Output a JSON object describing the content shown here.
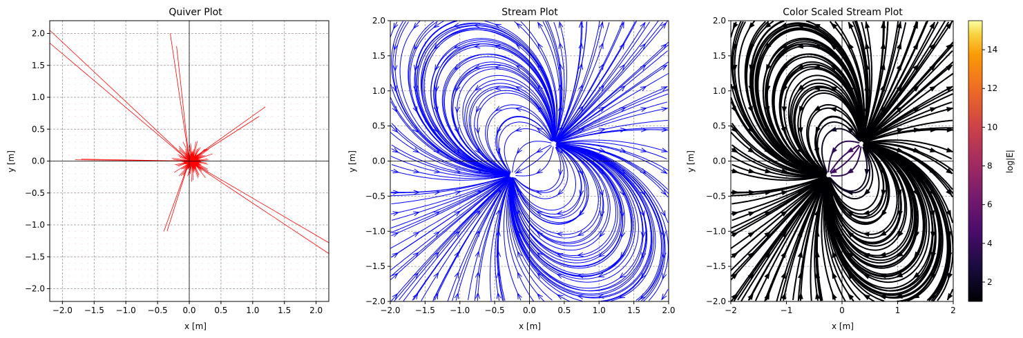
{
  "chart_data": [
    {
      "type": "quiver",
      "title": "Quiver Plot",
      "xlabel": "x [m]",
      "ylabel": "y [m]",
      "xlim": [
        -2.2,
        2.2
      ],
      "ylim": [
        -2.2,
        2.2
      ],
      "xticks": [
        "−2.0",
        "−1.5",
        "−1.0",
        "−0.5",
        "0.0",
        "0.5",
        "1.0",
        "1.5",
        "2.0"
      ],
      "yticks": [
        "−2.0",
        "−1.5",
        "−1.0",
        "−0.5",
        "0.0",
        "0.5",
        "1.0",
        "1.5",
        "2.0"
      ],
      "grid": true,
      "color": "#ff0000",
      "grid_range": [
        -2.0,
        2.0
      ],
      "long_arrows": [
        {
          "x": [
            0.0,
            -2.2
          ],
          "y": [
            0.0,
            2.05
          ]
        },
        {
          "x": [
            0.0,
            -2.2
          ],
          "y": [
            0.0,
            1.85
          ]
        },
        {
          "x": [
            0.0,
            2.2
          ],
          "y": [
            0.0,
            -1.45
          ]
        },
        {
          "x": [
            0.0,
            2.2
          ],
          "y": [
            0.0,
            -1.28
          ]
        },
        {
          "x": [
            0.0,
            1.2
          ],
          "y": [
            0.0,
            0.85
          ]
        },
        {
          "x": [
            0.0,
            1.1
          ],
          "y": [
            0.0,
            0.7
          ]
        },
        {
          "x": [
            0.0,
            -0.3
          ],
          "y": [
            0.0,
            2.0
          ]
        },
        {
          "x": [
            0.0,
            -0.2
          ],
          "y": [
            0.0,
            1.8
          ]
        },
        {
          "x": [
            0.0,
            -0.4
          ],
          "y": [
            0.0,
            -1.1
          ]
        },
        {
          "x": [
            0.0,
            -0.35
          ],
          "y": [
            0.0,
            -1.1
          ]
        },
        {
          "x": [
            0.0,
            -1.8
          ],
          "y": [
            0.0,
            0.02
          ]
        },
        {
          "x": [
            0.0,
            -1.7
          ],
          "y": [
            0.0,
            0.03
          ]
        }
      ]
    },
    {
      "type": "stream",
      "title": "Stream Plot",
      "xlabel": "x [m]",
      "ylabel": "y [m]",
      "xlim": [
        -2.0,
        2.0
      ],
      "ylim": [
        -2.0,
        2.0
      ],
      "xticks": [
        "−2.0",
        "−1.5",
        "−1.0",
        "−0.5",
        "0.0",
        "0.5",
        "1.0",
        "1.5",
        "2.0"
      ],
      "yticks": [
        "−2.0",
        "−1.5",
        "−1.0",
        "−0.5",
        "0.0",
        "0.5",
        "1.0",
        "1.5",
        "2.0"
      ],
      "grid": true,
      "color": "#0000ff",
      "sources": [
        {
          "x": 0.35,
          "y": 0.25,
          "sign": 1
        },
        {
          "x": -0.25,
          "y": -0.2,
          "sign": -1
        }
      ]
    },
    {
      "type": "stream",
      "title": "Color Scaled Stream Plot",
      "xlabel": "x [m]",
      "ylabel": "y [m]",
      "xlim": [
        -2,
        2
      ],
      "ylim": [
        -2,
        2
      ],
      "xticks": [
        "−2",
        "−1",
        "0",
        "1",
        "2"
      ],
      "yticks": [
        "−2.0",
        "−1.5",
        "−1.0",
        "−0.5",
        "0.0",
        "0.5",
        "1.0",
        "1.5",
        "2.0"
      ],
      "grid": true,
      "colormap": "inferno",
      "sources": [
        {
          "x": 0.35,
          "y": 0.25,
          "sign": 1
        },
        {
          "x": -0.25,
          "y": -0.2,
          "sign": -1
        }
      ],
      "colorbar": {
        "label": "log|E|",
        "range": [
          1,
          15.5
        ],
        "ticks": [
          "2",
          "4",
          "6",
          "8",
          "10",
          "12",
          "14"
        ],
        "tick_values": [
          2,
          4,
          6,
          8,
          10,
          12,
          14
        ]
      }
    }
  ]
}
